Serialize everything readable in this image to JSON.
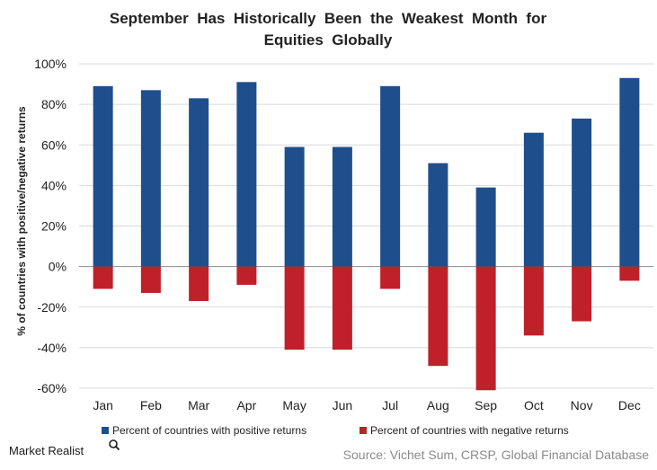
{
  "chart_data": {
    "type": "bar",
    "title_lines": [
      "September  Has  Historically  Been  the  Weakest  Month  for",
      "Equities  Globally"
    ],
    "ylabel": "% of countries with positive/negative returns",
    "xlabel": "",
    "categories": [
      "Jan",
      "Feb",
      "Mar",
      "Apr",
      "May",
      "Jun",
      "Jul",
      "Aug",
      "Sep",
      "Oct",
      "Nov",
      "Dec"
    ],
    "series": [
      {
        "name": "Percent of countries with positive returns",
        "color": "#1f4e8c",
        "values": [
          89,
          87,
          83,
          91,
          59,
          59,
          89,
          51,
          39,
          66,
          73,
          93
        ]
      },
      {
        "name": "Percent of countries with negative returns",
        "color": "#c0202a",
        "values": [
          -11,
          -13,
          -17,
          -9,
          -41,
          -41,
          -11,
          -49,
          -61,
          -34,
          -27,
          -7
        ]
      }
    ],
    "ylim": [
      -60,
      100
    ],
    "yticks": [
      -60,
      -40,
      -20,
      0,
      20,
      40,
      60,
      80,
      100
    ],
    "ytick_labels": [
      "-60%",
      "-40%",
      "-20%",
      "0%",
      "20%",
      "40%",
      "60%",
      "80%",
      "100%"
    ],
    "grid": true,
    "legend_position": "bottom"
  },
  "footer": {
    "brand": "Market Realist",
    "brand_icon": "magnifier-icon",
    "source": "Source: Vichet Sum, CRSP, Global Financial Database"
  },
  "colors": {
    "gridline": "#d9d9d9",
    "axis": "#8c8c8c"
  }
}
